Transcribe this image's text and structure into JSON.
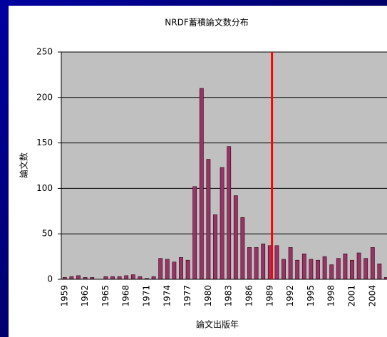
{
  "chart_data": {
    "type": "bar",
    "title": "NRDF蓄積論文数分布",
    "x_label": "論文出版年",
    "y_label": "論文数",
    "categories": [
      "1959",
      null,
      null,
      "1962",
      null,
      null,
      "1965",
      null,
      null,
      "1968",
      null,
      null,
      "1971",
      null,
      null,
      "1974",
      null,
      null,
      "1977",
      null,
      null,
      "1980",
      null,
      null,
      "1983",
      null,
      null,
      "1986",
      null,
      null,
      "1989",
      null,
      null,
      "1992",
      null,
      null,
      "1995",
      null,
      null,
      "1998",
      null,
      null,
      "2001",
      null,
      null,
      "2004",
      null,
      null
    ],
    "values": [
      2,
      3,
      4,
      2,
      2,
      0,
      3,
      3,
      3,
      4,
      5,
      3,
      1,
      3,
      23,
      22,
      19,
      24,
      21,
      102,
      210,
      132,
      71,
      123,
      146,
      92,
      68,
      35,
      35,
      39,
      37,
      37,
      22,
      35,
      21,
      28,
      22,
      21,
      25,
      16,
      23,
      28,
      21,
      29,
      23,
      35,
      17,
      2
    ],
    "color": "#993366",
    "ylim": [
      0,
      250
    ],
    "yticks": [
      0,
      50,
      100,
      150,
      200,
      250
    ],
    "grid": true
  }
}
